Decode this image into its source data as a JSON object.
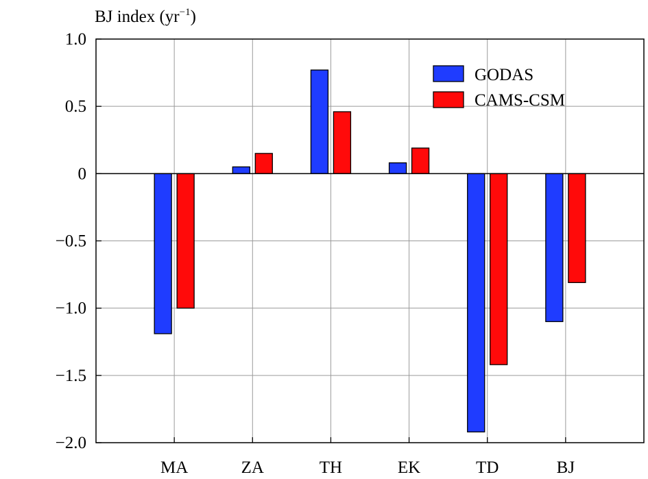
{
  "chart_data": {
    "type": "bar",
    "ylabel": "BJ index (yr",
    "ylabel_sup": "−1",
    "ylabel_close": ")",
    "categories": [
      "MA",
      "ZA",
      "TH",
      "EK",
      "TD",
      "BJ"
    ],
    "series": [
      {
        "name": "GODAS",
        "color": "#1f3cff",
        "values": [
          -1.19,
          0.05,
          0.77,
          0.08,
          -1.92,
          -1.1
        ]
      },
      {
        "name": "CAMS-CSM",
        "color": "#ff0a0a",
        "values": [
          -1.0,
          0.15,
          0.46,
          0.19,
          -1.42,
          -0.81
        ]
      }
    ],
    "yticks": [
      1.0,
      0.5,
      0,
      -0.5,
      -1.0,
      -1.5,
      -2.0
    ],
    "ytick_labels": [
      "1.0",
      "0.5",
      "0",
      "−0.5",
      "−1.0",
      "−1.5",
      "−2.0"
    ],
    "ylim": [
      -2.0,
      1.0
    ],
    "grid": true,
    "legend_position": "top-right"
  }
}
